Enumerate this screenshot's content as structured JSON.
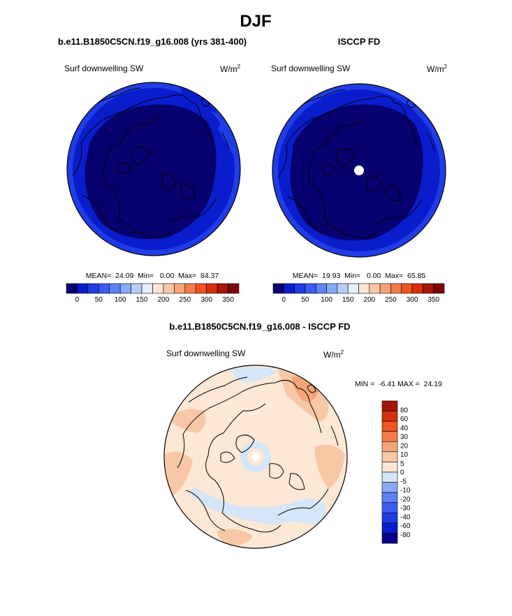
{
  "figure": {
    "title": "DJF"
  },
  "colors": {
    "land_outline": "#000000",
    "missing": "#ffffff",
    "abs_palette": [
      "#08006e",
      "#0a1dcc",
      "#1f3de6",
      "#3a5cf0",
      "#5c82f4",
      "#88a9f6",
      "#b7cdf8",
      "#e4eefb",
      "#fde4d4",
      "#f8c8a6",
      "#f5a47a",
      "#f47a4c",
      "#ee5520",
      "#d8300a",
      "#a81404",
      "#7d0505"
    ],
    "diff_palette": [
      "#08008c",
      "#0a1dcc",
      "#1f3de6",
      "#3a5cf0",
      "#5c82f4",
      "#88a9f6",
      "#d4e6f8",
      "#fde8d6",
      "#f8c8a6",
      "#f5a47a",
      "#f47a4c",
      "#ee5520",
      "#d8300a",
      "#a81404"
    ]
  },
  "chart_data": [
    {
      "type": "heatmap",
      "projection": "north-polar-stereographic",
      "title": "b.e11.B1850C5CN.f19_g16.008 (yrs 381-400)",
      "left_label": "Surf downwelling SW",
      "units": "W/m",
      "units_sup": "2",
      "stats_text": "MEAN=  24.09  Min=   0.00  Max=  84.37",
      "stats": {
        "mean": 24.09,
        "min": 0.0,
        "max": 84.37
      },
      "levels": [
        0,
        25,
        50,
        75,
        100,
        125,
        150,
        175,
        200,
        225,
        250,
        275,
        300,
        325,
        350
      ],
      "colorbar_labels": [
        "0",
        "50",
        "100",
        "150",
        "200",
        "250",
        "300",
        "350"
      ],
      "contour_fill": [
        {
          "value_range": [
            0,
            25
          ],
          "extent": "pole-to-edge interior"
        },
        {
          "value_range": [
            25,
            50
          ],
          "extent": "outer ring"
        },
        {
          "value_range": [
            50,
            75
          ],
          "extent": "outer ring edge"
        },
        {
          "value_range": [
            75,
            100
          ],
          "extent": "margin patches"
        }
      ],
      "missing_pole": false
    },
    {
      "type": "heatmap",
      "projection": "north-polar-stereographic",
      "title": "ISCCP FD",
      "left_label": "Surf downwelling SW",
      "units": "W/m",
      "units_sup": "2",
      "stats_text": "MEAN=  19.93  Min=   0.00  Max=  65.85",
      "stats": {
        "mean": 19.93,
        "min": 0.0,
        "max": 65.85
      },
      "levels": [
        0,
        25,
        50,
        75,
        100,
        125,
        150,
        175,
        200,
        225,
        250,
        275,
        300,
        325,
        350
      ],
      "colorbar_labels": [
        "0",
        "50",
        "100",
        "150",
        "200",
        "250",
        "300",
        "350"
      ],
      "contour_fill": [
        {
          "value_range": [
            0,
            25
          ],
          "extent": "pole-to-edge interior"
        },
        {
          "value_range": [
            25,
            50
          ],
          "extent": "outer ring"
        },
        {
          "value_range": [
            50,
            75
          ],
          "extent": "outer ring edge"
        }
      ],
      "missing_pole": true
    },
    {
      "type": "heatmap",
      "projection": "north-polar-stereographic",
      "title": "b.e11.B1850C5CN.f19_g16.008 - ISCCP FD",
      "left_label": "Surf downwelling SW",
      "units": "W/m",
      "units_sup": "2",
      "stats_text": "MIN =  -6.41 MAX =  24.19",
      "stats": {
        "min": -6.41,
        "max": 24.19
      },
      "levels": [
        -80,
        -60,
        -40,
        -30,
        -20,
        -10,
        -5,
        0,
        5,
        10,
        20,
        30,
        40,
        60,
        80
      ],
      "colorbar_labels": [
        "80",
        "60",
        "40",
        "30",
        "20",
        "10",
        "5",
        "0",
        "-5",
        "-10",
        "-20",
        "-30",
        "-40",
        "-60",
        "-80"
      ],
      "contour_fill": [
        {
          "value_range": [
            0,
            5
          ],
          "extent": "most of domain"
        },
        {
          "value_range": [
            5,
            10
          ],
          "extent": "scattered patches"
        },
        {
          "value_range": [
            10,
            20
          ],
          "extent": "small patch"
        },
        {
          "value_range": [
            -5,
            0
          ],
          "extent": "arc and ring near pole"
        }
      ],
      "missing_pole": true
    }
  ]
}
